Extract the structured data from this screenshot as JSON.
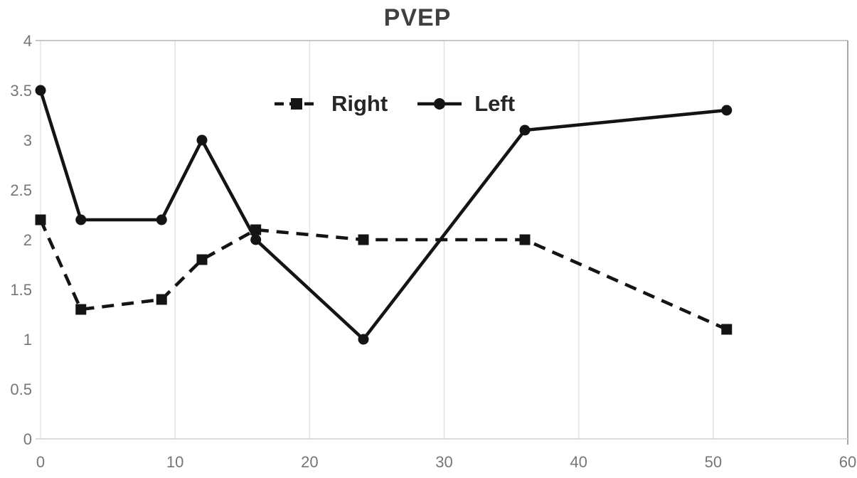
{
  "title": "PVEP",
  "colors": {
    "series": "#141414",
    "title_text": "#404040",
    "tick_text": "#767676",
    "gridline": "#e4e4e4",
    "top_border": "#bfbfbf",
    "bottom_axis": "#d6d6d6",
    "right_border": "#a6a6a6",
    "background": "#ffffff"
  },
  "legend": {
    "items": [
      {
        "label": "Right",
        "marker": "square",
        "line_style": "dashed"
      },
      {
        "label": "Left",
        "marker": "circle",
        "line_style": "solid"
      }
    ]
  },
  "chart_data": {
    "type": "line",
    "title": "PVEP",
    "xlabel": "",
    "ylabel": "",
    "x": [
      0,
      3,
      9,
      12,
      16,
      24,
      36,
      51
    ],
    "series": [
      {
        "name": "Right",
        "line_style": "dashed",
        "marker": "square",
        "values": [
          2.2,
          1.3,
          1.4,
          1.8,
          2.1,
          2.0,
          2.0,
          1.1
        ]
      },
      {
        "name": "Left",
        "line_style": "solid",
        "marker": "circle",
        "values": [
          3.5,
          2.2,
          2.2,
          3.0,
          2.0,
          1.0,
          3.1,
          3.3
        ]
      }
    ],
    "xlim": [
      0,
      60
    ],
    "ylim": [
      0,
      4
    ],
    "x_ticks": [
      "0",
      "10",
      "20",
      "30",
      "40",
      "50",
      "60"
    ],
    "y_ticks": [
      "0",
      "0.5",
      "1",
      "1.5",
      "2",
      "2.5",
      "3",
      "3.5",
      "4"
    ],
    "grid": "vertical-only plus top horizontal border",
    "legend_position": "top-center-inside"
  }
}
